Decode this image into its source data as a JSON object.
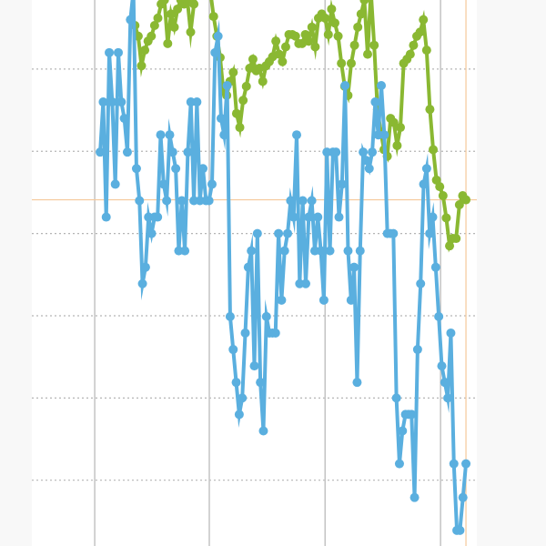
{
  "chart_data": {
    "type": "line",
    "title": "",
    "xlabel": "",
    "ylabel": "",
    "xlim": [
      -22.6,
      124.6
    ],
    "ylim": [
      -8.0,
      58.4
    ],
    "grid": {
      "horizontal": [
        0,
        10,
        20,
        30,
        40,
        50
      ],
      "horizontal_style": "dotted",
      "vertical": [
        -1.8,
        36.1,
        74.4,
        112.6
      ],
      "vertical_style": "solid"
    },
    "crosshair": {
      "x": 121,
      "y": 34.1,
      "color": "#f5c89a"
    },
    "colors": {
      "plot_background": "#ffffff",
      "outer_background": "#f8f8f8",
      "grid": "#b5b5b5"
    },
    "series": [
      {
        "color": "#5aafdf",
        "x_range": [
          0,
          121
        ],
        "values": [
          39.9,
          46.0,
          32.0,
          52.0,
          46.0,
          36.0,
          52.0,
          46.0,
          44.0,
          39.9,
          56.0,
          59.5,
          37.9,
          34.0,
          23.9,
          25.9,
          32.0,
          30.0,
          32.0,
          32.0,
          42.0,
          36.0,
          34.0,
          42.0,
          39.9,
          37.9,
          27.9,
          34.0,
          27.9,
          39.9,
          46.0,
          34.0,
          46.0,
          34.0,
          37.9,
          34.0,
          34.0,
          36.0,
          52.0,
          54.0,
          44.0,
          42.0,
          48.0,
          19.9,
          15.9,
          11.9,
          8.0,
          10.0,
          17.9,
          25.9,
          27.9,
          13.9,
          30.0,
          11.9,
          6.0,
          19.9,
          17.9,
          17.9,
          17.9,
          30.0,
          21.9,
          27.9,
          30.0,
          34.0,
          32.0,
          42.0,
          23.9,
          34.0,
          23.9,
          32.0,
          34.0,
          27.9,
          32.0,
          27.9,
          21.9,
          39.9,
          27.9,
          39.9,
          39.9,
          32.0,
          36.0,
          48.0,
          27.9,
          21.9,
          25.9,
          11.9,
          27.9,
          39.9,
          38.9,
          37.9,
          39.9,
          46.0,
          42.0,
          48.0,
          42.0,
          30.0,
          30.0,
          30.0,
          10.0,
          2.0,
          6.0,
          8.0,
          8.0,
          8.0,
          -2.1,
          15.9,
          23.9,
          36.0,
          37.9,
          30.0,
          32.0,
          25.9,
          19.9,
          13.9,
          11.9,
          10.0,
          17.9,
          2.0,
          -6.1,
          -6.1,
          -2.1,
          2.0
        ]
      },
      {
        "color": "#8ab832",
        "x_range": [
          11.5,
          121
        ],
        "values": [
          55.3,
          54.0,
          50.4,
          52.3,
          53.4,
          54.0,
          55.3,
          56.2,
          57.9,
          58.4,
          53.1,
          56.7,
          55.1,
          57.3,
          58.4,
          57.9,
          58.4,
          54.5,
          57.9,
          60.6,
          61.7,
          61.0,
          60.0,
          59.5,
          56.4,
          54.0,
          51.4,
          47.3,
          46.8,
          48.5,
          49.6,
          44.6,
          42.9,
          46.2,
          47.9,
          50.1,
          51.2,
          49.8,
          50.1,
          48.5,
          50.4,
          50.9,
          51.5,
          53.4,
          51.8,
          50.9,
          52.7,
          54.2,
          54.2,
          54.0,
          53.1,
          53.1,
          54.2,
          53.4,
          55.1,
          52.7,
          56.2,
          56.7,
          56.2,
          54.2,
          57.3,
          55.6,
          54.0,
          50.7,
          47.9,
          46.8,
          50.7,
          52.9,
          55.1,
          56.7,
          58.4,
          51.8,
          59.5,
          52.9,
          45.1,
          42.4,
          40.2,
          39.4,
          44.0,
          43.5,
          40.7,
          42.9,
          50.7,
          51.2,
          51.8,
          52.9,
          54.0,
          54.5,
          56.0,
          52.3,
          45.1,
          40.2,
          36.5,
          35.7,
          34.6,
          31.9,
          28.5,
          29.4,
          29.4,
          33.5,
          34.6,
          34.1
        ]
      }
    ]
  }
}
